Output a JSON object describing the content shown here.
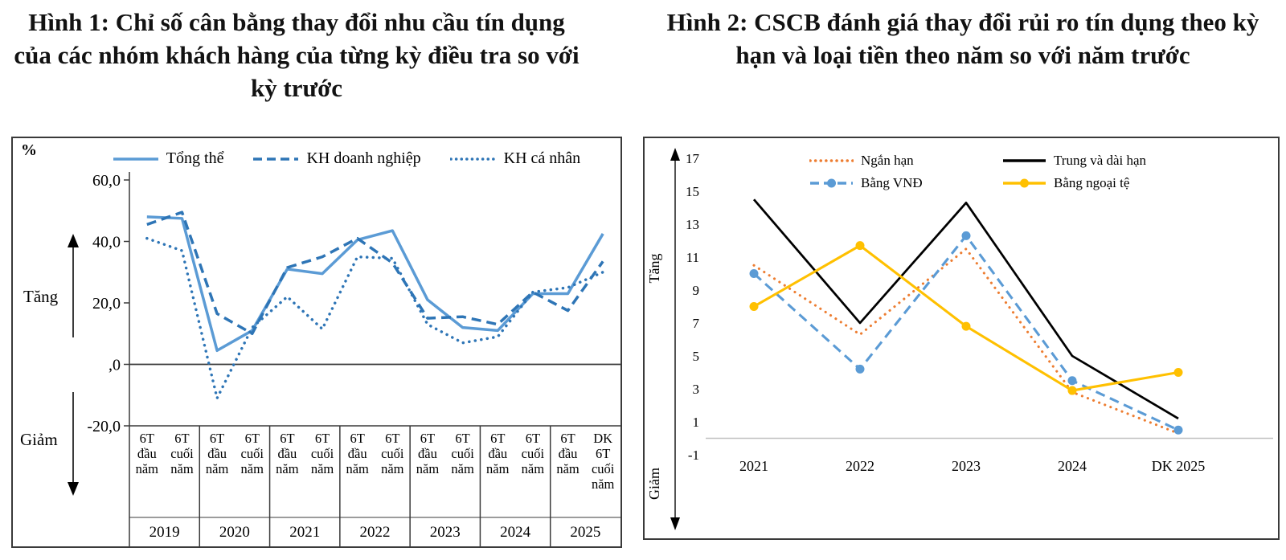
{
  "figures": [
    {
      "id": "fig1",
      "title": "Hình 1:  Chỉ số cân bằng thay đổi nhu cầu tín dụng của các nhóm khách hàng của từng kỳ điều tra so với kỳ trước",
      "unit_label": "%",
      "increase_label": "Tăng",
      "decrease_label": "Giảm"
    },
    {
      "id": "fig2",
      "title": "Hình 2: CSCB đánh giá thay đổi rủi ro tín dụng theo kỳ hạn và loại tiền theo năm so với năm trước",
      "increase_label": "Tăng",
      "decrease_label": "Giảm"
    }
  ],
  "chart_data": [
    {
      "type": "line",
      "title": "Chỉ số cân bằng thay đổi nhu cầu tín dụng của các nhóm khách hàng của từng kỳ điều tra so với kỳ trước",
      "ylabel": "%",
      "ylim": [
        -20,
        60
      ],
      "ytick_values": [
        60,
        40,
        20,
        0,
        -20
      ],
      "ytick_labels": [
        "60,0",
        "40,0",
        "20,0",
        ",0",
        "-20,0"
      ],
      "grid": false,
      "legend_position": "top",
      "x_groups": [
        {
          "year": "2019",
          "periods": [
            "6T đầu năm",
            "6T cuối năm"
          ]
        },
        {
          "year": "2020",
          "periods": [
            "6T đầu năm",
            "6T cuối năm"
          ]
        },
        {
          "year": "2021",
          "periods": [
            "6T đầu năm",
            "6T cuối năm"
          ]
        },
        {
          "year": "2022",
          "periods": [
            "6T đầu năm",
            "6T cuối năm"
          ]
        },
        {
          "year": "2023",
          "periods": [
            "6T đầu năm",
            "6T cuối năm"
          ]
        },
        {
          "year": "2024",
          "periods": [
            "6T đầu năm",
            "6T cuối năm"
          ]
        },
        {
          "year": "2025",
          "periods": [
            "6T đầu năm",
            "DK 6T cuối năm"
          ]
        }
      ],
      "series": [
        {
          "name": "Tổng thể",
          "color": "#5B9BD5",
          "dash": "solid",
          "marker": false,
          "values": [
            48,
            47.5,
            4.5,
            11,
            31,
            29.5,
            40.5,
            43.5,
            21,
            12,
            11,
            23,
            23,
            42.5
          ]
        },
        {
          "name": "KH doanh nghiệp",
          "color": "#2E75B6",
          "dash": "dashed",
          "marker": false,
          "values": [
            45.5,
            49.5,
            16.5,
            10,
            31.5,
            35,
            41,
            33,
            15,
            15.5,
            13,
            23.5,
            17.5,
            33.5
          ]
        },
        {
          "name": "KH cá nhân",
          "color": "#2E75B6",
          "dash": "dotted",
          "marker": false,
          "values": [
            41,
            37,
            -11,
            12,
            22,
            11.5,
            35,
            34.5,
            13,
            7,
            9,
            23.5,
            25,
            30
          ]
        }
      ]
    },
    {
      "type": "line",
      "title": "CSCB đánh giá thay đổi rủi ro tín dụng theo kỳ hạn và loại tiền theo năm so với năm trước",
      "ylim": [
        -1,
        17
      ],
      "ytick_values": [
        17,
        15,
        13,
        11,
        9,
        7,
        5,
        3,
        1,
        -1
      ],
      "categories": [
        "2021",
        "2022",
        "2023",
        "2024",
        "DK 2025"
      ],
      "grid": false,
      "legend_position": "top",
      "series": [
        {
          "name": "Ngắn hạn",
          "color": "#ED7D31",
          "dash": "dotted",
          "marker": false,
          "values": [
            10.5,
            6.3,
            11.5,
            2.8,
            0.3
          ]
        },
        {
          "name": "Trung và dài hạn",
          "color": "#000000",
          "dash": "solid",
          "marker": false,
          "values": [
            14.5,
            7,
            14.3,
            5,
            1.2
          ]
        },
        {
          "name": "Bằng VNĐ",
          "color": "#5B9BD5",
          "dash": "dashed",
          "marker": true,
          "values": [
            10,
            4.2,
            12.3,
            3.5,
            0.5
          ]
        },
        {
          "name": "Bằng ngoại tệ",
          "color": "#FFC000",
          "dash": "solid",
          "marker": true,
          "values": [
            8,
            11.7,
            6.8,
            2.9,
            4
          ]
        }
      ]
    }
  ]
}
